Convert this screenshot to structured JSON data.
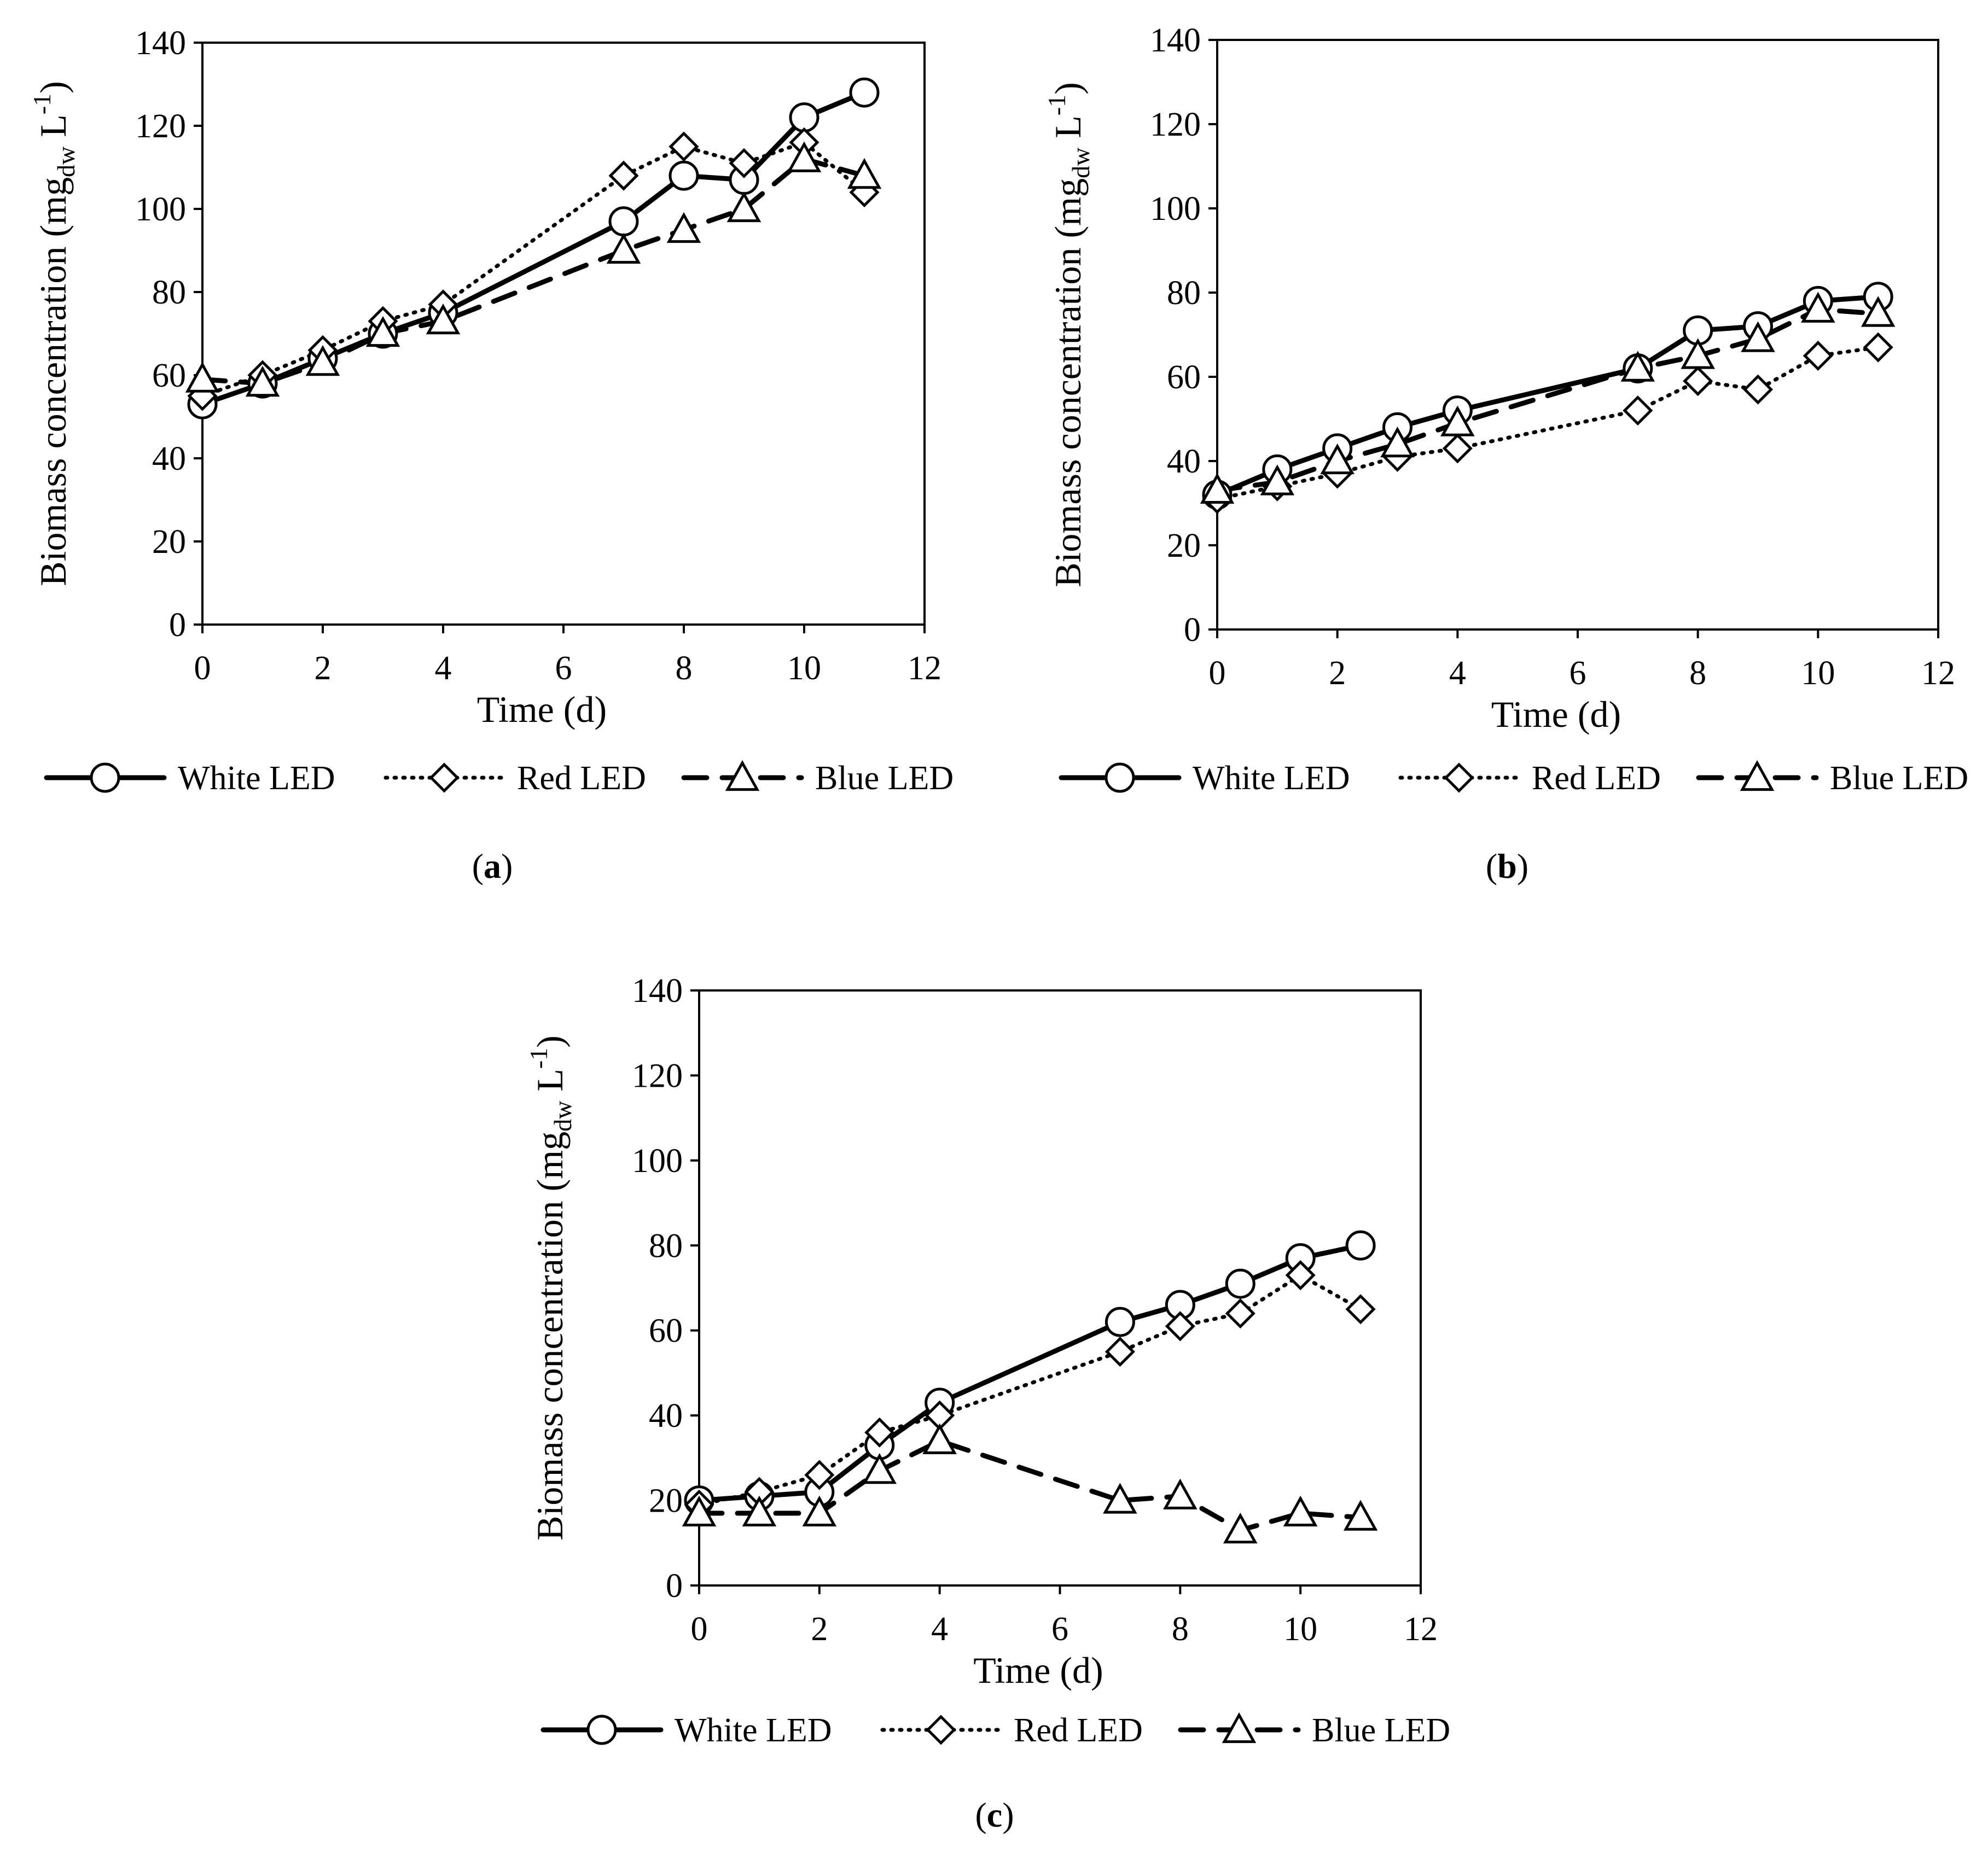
{
  "figure": {
    "panels": [
      "(a)",
      "(b)",
      "(c)"
    ]
  },
  "chart_data": [
    {
      "panel": "a",
      "label_letter": "a",
      "type": "line",
      "xlabel": "Time (d)",
      "ylabel": {
        "main": "Biomass concentration (mg",
        "sub": "dw",
        "unit": " L",
        "sup": "-1",
        "close": ")"
      },
      "xlim": [
        0,
        12
      ],
      "ylim": [
        0,
        140
      ],
      "xticks": [
        0,
        2,
        4,
        6,
        8,
        10,
        12
      ],
      "yticks": [
        0,
        20,
        40,
        60,
        80,
        100,
        120,
        140
      ],
      "legend_position": "bottom",
      "x": [
        0,
        1,
        2,
        3,
        4,
        7,
        8,
        9,
        10,
        11
      ],
      "series": [
        {
          "name": "White LED",
          "marker": "circle",
          "line": "solid",
          "values": [
            53,
            58,
            64,
            70,
            75,
            97,
            108,
            107,
            122,
            128
          ]
        },
        {
          "name": "Red LED",
          "marker": "diamond",
          "line": "dotted",
          "values": [
            55,
            60,
            66,
            73,
            77,
            108,
            115,
            111,
            116,
            104
          ]
        },
        {
          "name": "Blue LED",
          "marker": "triangle",
          "line": "dashed",
          "values": [
            59,
            58,
            63,
            70,
            73,
            90,
            95,
            100,
            112,
            108
          ]
        }
      ]
    },
    {
      "panel": "b",
      "label_letter": "b",
      "type": "line",
      "xlabel": "Time (d)",
      "ylabel": {
        "main": "Biomass concentration (mg",
        "sub": "dw",
        "unit": " L",
        "sup": "-1",
        "close": ")"
      },
      "xlim": [
        0,
        12
      ],
      "ylim": [
        0,
        140
      ],
      "xticks": [
        0,
        2,
        4,
        6,
        8,
        10,
        12
      ],
      "yticks": [
        0,
        20,
        40,
        60,
        80,
        100,
        120,
        140
      ],
      "legend_position": "bottom",
      "x": [
        0,
        1,
        2,
        3,
        4,
        7,
        8,
        9,
        10,
        11
      ],
      "series": [
        {
          "name": "White LED",
          "marker": "circle",
          "line": "solid",
          "values": [
            32,
            38,
            43,
            48,
            52,
            62,
            71,
            72,
            78,
            79
          ]
        },
        {
          "name": "Red LED",
          "marker": "diamond",
          "line": "dotted",
          "values": [
            31,
            34,
            37,
            41,
            43,
            52,
            59,
            57,
            65,
            67
          ]
        },
        {
          "name": "Blue LED",
          "marker": "triangle",
          "line": "dashed",
          "values": [
            33,
            35,
            40,
            44,
            49,
            62,
            65,
            69,
            76,
            75
          ]
        }
      ]
    },
    {
      "panel": "c",
      "label_letter": "c",
      "type": "line",
      "xlabel": "Time (d)",
      "ylabel": {
        "main": "Biomass concentration (mg",
        "sub": "dw",
        "unit": " L",
        "sup": "-1",
        "close": ")"
      },
      "xlim": [
        0,
        12
      ],
      "ylim": [
        0,
        140
      ],
      "xticks": [
        0,
        2,
        4,
        6,
        8,
        10,
        12
      ],
      "yticks": [
        0,
        20,
        40,
        60,
        80,
        100,
        120,
        140
      ],
      "legend_position": "bottom",
      "x": [
        0,
        1,
        2,
        3,
        4,
        7,
        8,
        9,
        10,
        11
      ],
      "series": [
        {
          "name": "White LED",
          "marker": "circle",
          "line": "solid",
          "values": [
            20,
            21,
            22,
            33,
            43,
            62,
            66,
            71,
            77,
            80
          ]
        },
        {
          "name": "Red LED",
          "marker": "diamond",
          "line": "dotted",
          "values": [
            19,
            22,
            26,
            36,
            40,
            55,
            61,
            64,
            73,
            65
          ]
        },
        {
          "name": "Blue LED",
          "marker": "triangle",
          "line": "dashed",
          "values": [
            17,
            17,
            17,
            27,
            34,
            20,
            21,
            13,
            17,
            16
          ]
        }
      ]
    }
  ]
}
